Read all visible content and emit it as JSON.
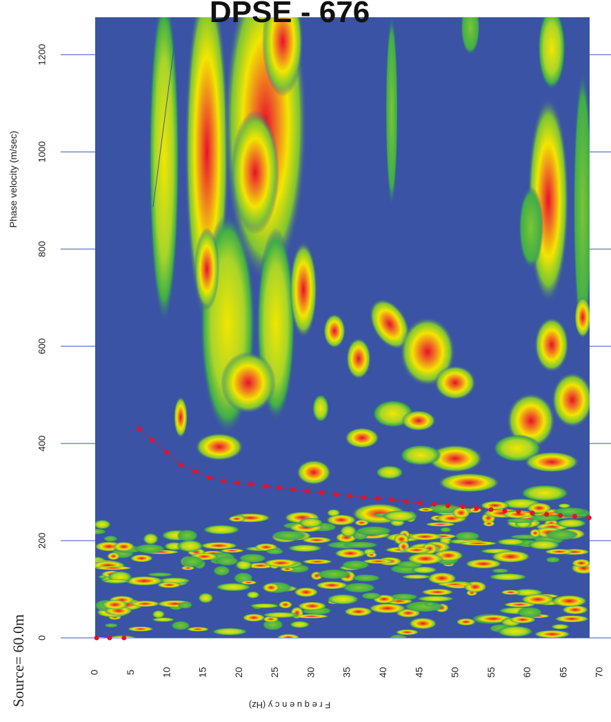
{
  "chart_data": {
    "type": "line",
    "title": "DPSE - 676",
    "y_label": "Phase velocity (m/sec)",
    "x_label": "F r e q u e n c y (Hz)",
    "annotation": "Source= 60.0m",
    "xlim": [
      0,
      70
    ],
    "xticks": [
      0,
      5,
      10,
      15,
      20,
      25,
      30,
      35,
      40,
      45,
      50,
      55,
      60,
      65,
      70
    ],
    "ylim": [
      0,
      1277
    ],
    "yticks": [
      0,
      200,
      400,
      600,
      800,
      1000,
      1200
    ],
    "grid": true,
    "series": [
      {
        "color": "#e8102a",
        "line": true,
        "x": [
          6.1,
          7.9,
          9.9,
          11.9,
          13.9,
          15.8,
          17.8,
          19.7,
          21.6,
          23.6,
          25.5,
          27.4,
          29.4,
          31.4,
          33.4,
          35.3,
          37.2,
          39.2,
          41.1,
          43.1,
          45.0,
          47.0,
          48.9,
          51.0,
          52.9,
          54.9,
          56.8,
          58.7,
          60.6,
          62.6,
          64.5,
          66.5,
          68.5
        ],
        "values": [
          430,
          407,
          382,
          356,
          342,
          330,
          323,
          319,
          316,
          312,
          309,
          305,
          302,
          299,
          295,
          292,
          289,
          287,
          284,
          281,
          278,
          275,
          272,
          270,
          267,
          264,
          261,
          260,
          257,
          254,
          252,
          250,
          247
        ]
      },
      {
        "color": "#e8102a",
        "line": false,
        "x": [
          0.2,
          2,
          4
        ],
        "values": [
          0,
          0,
          0
        ]
      }
    ]
  }
}
